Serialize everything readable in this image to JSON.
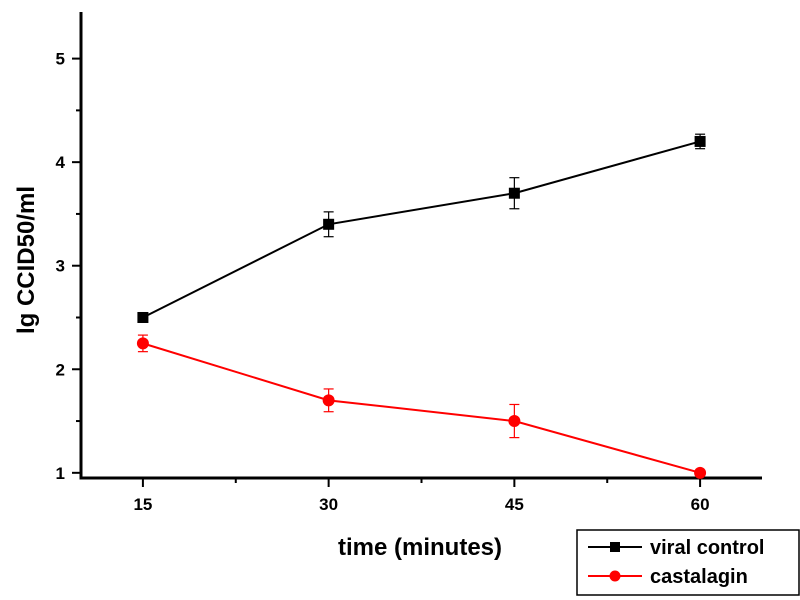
{
  "chart_data": {
    "type": "line",
    "xlabel": "time (minutes)",
    "ylabel": "lg CCID50/ml",
    "x": [
      15,
      30,
      45,
      60
    ],
    "xticks": [
      "15",
      "30",
      "45",
      "60"
    ],
    "yticks": [
      "1",
      "2",
      "3",
      "4",
      "5"
    ],
    "xlim": [
      10,
      65
    ],
    "ylim": [
      0.95,
      5.45
    ],
    "grid": false,
    "legend_position": "bottom-right",
    "series": [
      {
        "name": "viral control",
        "color": "#000000",
        "marker": "square",
        "values": [
          2.5,
          3.4,
          3.7,
          4.2
        ],
        "errors": [
          0.0,
          0.12,
          0.15,
          0.07
        ]
      },
      {
        "name": "castalagin",
        "color": "#ff0000",
        "marker": "circle",
        "values": [
          2.25,
          1.7,
          1.5,
          1.0
        ],
        "errors": [
          0.08,
          0.11,
          0.16,
          0.0
        ]
      }
    ]
  }
}
